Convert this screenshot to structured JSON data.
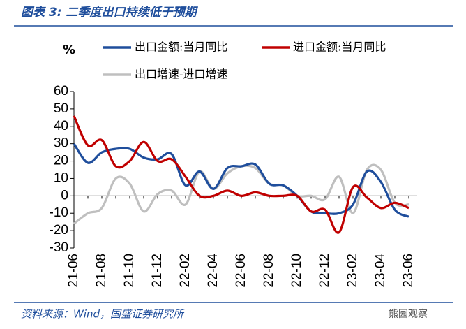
{
  "chart_data": {
    "type": "line",
    "title": "图表 3:  二季度出口持续低于预期",
    "y_label": "%",
    "source": "资料来源：Wind，国盛证券研究所",
    "watermark": "熊园观察",
    "categories": [
      "21-06",
      null,
      "21-08",
      null,
      "21-10",
      null,
      "21-12",
      null,
      "22-02",
      null,
      "22-04",
      null,
      "22-06",
      null,
      "22-08",
      null,
      "22-10",
      null,
      "22-12",
      null,
      "23-02",
      null,
      "23-04",
      null,
      "23-06"
    ],
    "series": [
      {
        "name": "出口金额:当月同比",
        "color": "#1f4e9c",
        "values": [
          30,
          19,
          25,
          27,
          27,
          22,
          21,
          24,
          6,
          14,
          4,
          16,
          17,
          18,
          7,
          6,
          0,
          -9,
          -10,
          -10,
          -5,
          14,
          8,
          -8,
          -12
        ]
      },
      {
        "name": "进口金额:当月同比",
        "color": "#c00000",
        "values": [
          46,
          29,
          32,
          17,
          20,
          31,
          20,
          21,
          11,
          0,
          0,
          3,
          0,
          2,
          0,
          0,
          0,
          -9,
          -8,
          -21,
          5,
          -1,
          -7,
          -4,
          -7
        ]
      },
      {
        "name": "出口增速-进口增速",
        "color": "#bfbfbf",
        "values": [
          -16,
          -10,
          -7,
          10,
          7,
          -9,
          1,
          3,
          -5,
          14,
          4,
          13,
          17,
          16,
          7,
          6,
          0,
          0,
          -2,
          11,
          -10,
          15,
          15,
          -4,
          -5
        ]
      }
    ],
    "ylim": [
      -30,
      60
    ],
    "yticks": [
      -30,
      -20,
      -10,
      0,
      10,
      20,
      30,
      40,
      50,
      60
    ]
  }
}
